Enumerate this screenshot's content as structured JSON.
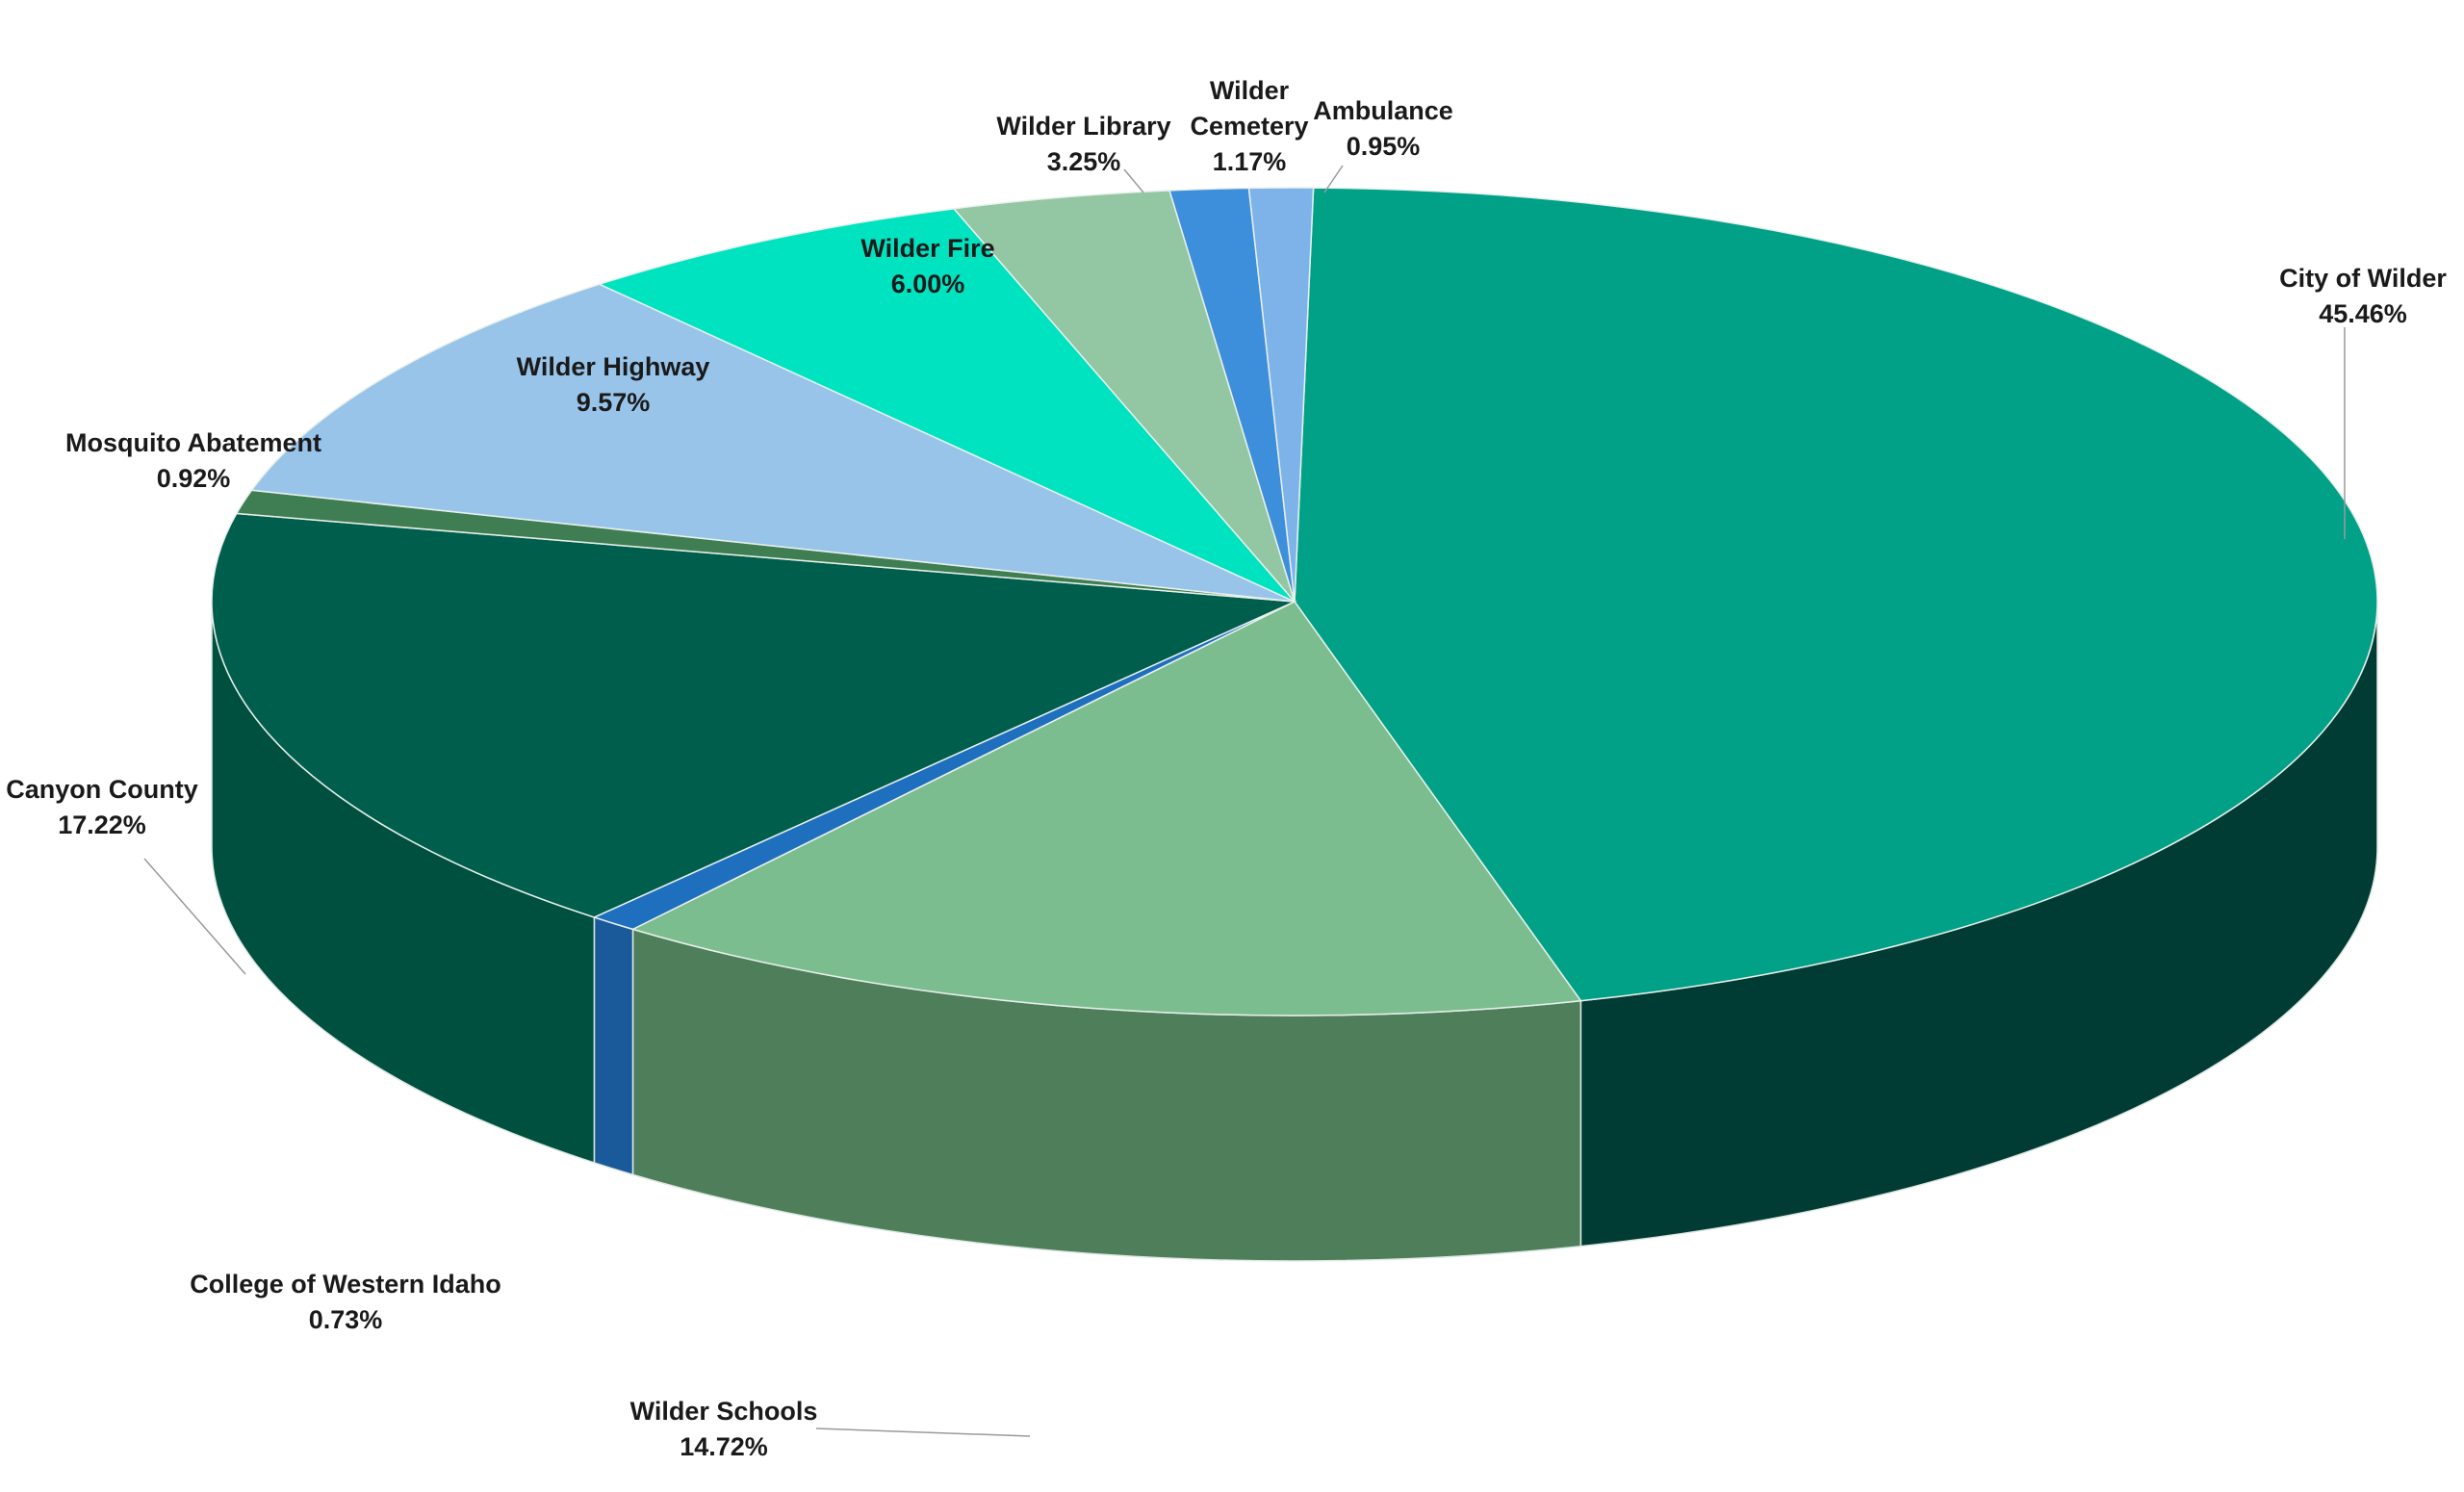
{
  "chart_data": {
    "type": "pie",
    "title": "",
    "legend": "none",
    "slices": [
      {
        "label": "City of Wilder",
        "percent_label": "45.46%",
        "value": 45.46,
        "color": "#00A187",
        "side_color": "#003C33"
      },
      {
        "label": "Wilder Schools",
        "percent_label": "14.72%",
        "value": 14.72,
        "color": "#7BBD8E",
        "side_color": "#4E7F5A"
      },
      {
        "label": "College of Western Idaho",
        "percent_label": "0.73%",
        "value": 0.73,
        "color": "#1F6FBF",
        "side_color": "#1B5A9A"
      },
      {
        "label": "Canyon County",
        "percent_label": "17.22%",
        "value": 17.22,
        "color": "#005E4C",
        "side_color": "#005040"
      },
      {
        "label": "Mosquito Abatement",
        "percent_label": "0.92%",
        "value": 0.92,
        "color": "#3F7E52",
        "side_color": "#2F5E3D"
      },
      {
        "label": "Wilder Highway",
        "percent_label": "9.57%",
        "value": 9.57,
        "color": "#98C4EA",
        "side_color": "#6E93B3"
      },
      {
        "label": "Wilder Fire",
        "percent_label": "6.00%",
        "value": 6.0,
        "color": "#00E3C0",
        "side_color": "#00A88D"
      },
      {
        "label": "Wilder Library",
        "percent_label": "3.25%",
        "value": 3.25,
        "color": "#93C6A2",
        "side_color": "#6B9678"
      },
      {
        "label": "Wilder Cemetery",
        "percent_label": "1.17%",
        "value": 1.17,
        "color": "#3D8FDB",
        "side_color": "#2C6CA6"
      },
      {
        "label": "Ambulance",
        "percent_label": "0.95%",
        "value": 0.95,
        "color": "#7DB3E8",
        "side_color": "#5A88B5"
      }
    ]
  }
}
